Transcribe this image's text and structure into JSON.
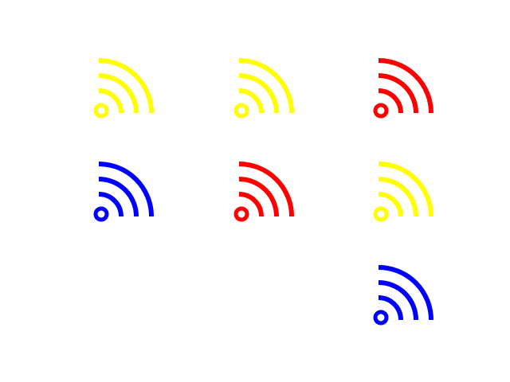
{
  "icons": [
    {
      "name": "rss-icon",
      "color": "#ffff00"
    },
    {
      "name": "rss-icon",
      "color": "#ffff00"
    },
    {
      "name": "rss-icon",
      "color": "#ff0000"
    },
    {
      "name": "rss-icon",
      "color": "#0000ff"
    },
    {
      "name": "rss-icon",
      "color": "#ff0000"
    },
    {
      "name": "rss-icon",
      "color": "#ffff00"
    },
    {
      "name": "rss-icon",
      "color": "#0000ff"
    }
  ]
}
